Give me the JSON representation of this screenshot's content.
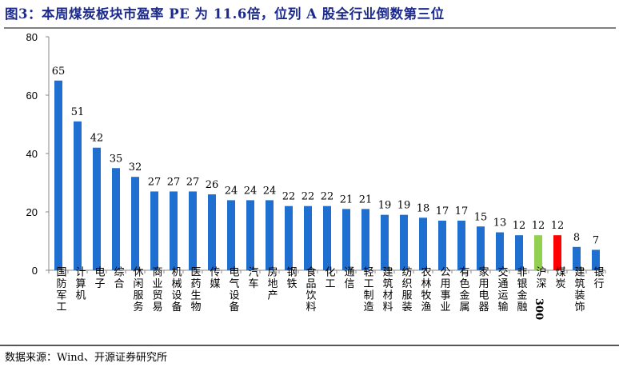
{
  "chart_data": {
    "type": "bar",
    "title": "图3：本周煤炭板块市盈率 PE 为 11.6倍，位列 A 股全行业倒数第三位",
    "categories": [
      "国防军工",
      "计算机",
      "电子",
      "综合",
      "休闲服务",
      "商业贸易",
      "机械设备",
      "医药生物",
      "传媒",
      "电气设备",
      "汽车",
      "房地产",
      "钢铁",
      "食品饮料",
      "化工",
      "通信",
      "轻工制造",
      "建筑材料",
      "纺织服装",
      "农林牧渔",
      "公用事业",
      "有色金属",
      "家用电器",
      "交通运输",
      "非银金融",
      "沪深300",
      "煤炭",
      "建筑装饰",
      "银行"
    ],
    "values": [
      65,
      51,
      42,
      35,
      32,
      27,
      27,
      27,
      26,
      24,
      24,
      24,
      22,
      22,
      22,
      21,
      21,
      19,
      19,
      18,
      17,
      17,
      15,
      13,
      12,
      12,
      12,
      8,
      7
    ],
    "data_labels": [
      "65",
      "51",
      "42",
      "35",
      "32",
      "27",
      "27",
      "27",
      "26",
      "24",
      "24",
      "24",
      "22",
      "22",
      "22",
      "21",
      "21",
      "19",
      "19",
      "18",
      "17",
      "17",
      "15",
      "13",
      "12",
      "12",
      "12",
      "8",
      "7"
    ],
    "xlabel": "",
    "ylabel": "",
    "ylim": [
      0,
      80
    ],
    "yticks": [
      0,
      20,
      40,
      60,
      80
    ],
    "grid": false,
    "legend": "none",
    "colors": {
      "default": "#1f6fd0",
      "沪深300": "#92d050",
      "煤炭": "#ff0000"
    }
  },
  "source": "数据来源：Wind、开源证券研究所"
}
